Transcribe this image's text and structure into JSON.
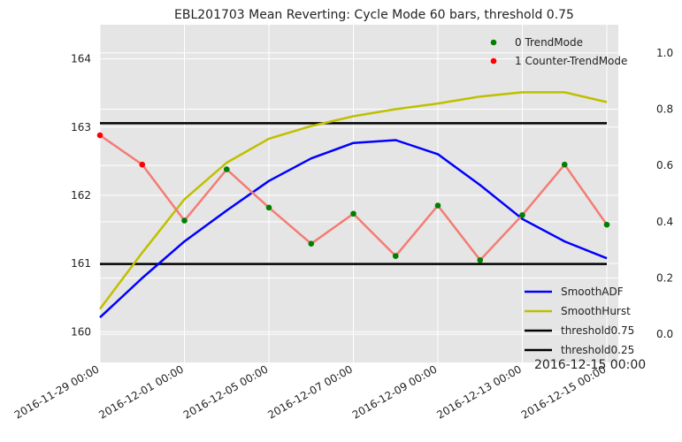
{
  "chart_data": {
    "type": "line",
    "title": "EBL201703 Mean Reverting: Cycle Mode 60 bars, threshold 0.75",
    "annotation": "2016-12-15 00:00",
    "x_tick_labels": [
      "2016-11-29 00:00",
      "2016-12-01 00:00",
      "2016-12-05 00:00",
      "2016-12-07 00:00",
      "2016-12-09 00:00",
      "2016-12-13 00:00",
      "2016-12-15 00:00"
    ],
    "bar_count": 13,
    "y_left": {
      "ylim": [
        159.55,
        164.5
      ],
      "ticks": [
        160,
        161,
        162,
        163,
        164
      ],
      "tick_labels": [
        "160",
        "161",
        "162",
        "163",
        "164"
      ]
    },
    "y_right": {
      "ylim": [
        -0.1,
        1.1
      ],
      "ticks": [
        0.0,
        0.2,
        0.4,
        0.6,
        0.8,
        1.0
      ],
      "tick_labels": [
        "0.0",
        "0.2",
        "0.4",
        "0.6",
        "0.8",
        "1.0"
      ]
    },
    "grid": true,
    "price": {
      "color": "#f47c74",
      "values": [
        162.88,
        162.45,
        161.63,
        162.38,
        161.82,
        161.29,
        161.73,
        161.11,
        161.85,
        161.05,
        161.71,
        162.45,
        161.57
      ]
    },
    "modes": [
      1,
      1,
      0,
      0,
      0,
      0,
      0,
      0,
      0,
      0,
      0,
      0,
      0
    ],
    "series": [
      {
        "name": "SmoothADF",
        "color": "#0000ff",
        "axis": "right",
        "values": [
          0.06,
          0.2,
          0.33,
          0.44,
          0.545,
          0.625,
          0.68,
          0.69,
          0.64,
          0.53,
          0.41,
          0.33,
          0.27
        ]
      },
      {
        "name": "SmoothHurst",
        "color": "#bfbf00",
        "axis": "right",
        "values": [
          0.09,
          0.29,
          0.48,
          0.61,
          0.695,
          0.74,
          0.775,
          0.8,
          0.82,
          0.845,
          0.86,
          0.86,
          0.825
        ]
      },
      {
        "name": "threshold0.75",
        "color": "#000000",
        "axis": "right",
        "values": [
          0.75,
          0.75,
          0.75,
          0.75,
          0.75,
          0.75,
          0.75,
          0.75,
          0.75,
          0.75,
          0.75,
          0.75,
          0.75
        ]
      },
      {
        "name": "threshold0.25",
        "color": "#000000",
        "axis": "right",
        "values": [
          0.25,
          0.25,
          0.25,
          0.25,
          0.25,
          0.25,
          0.25,
          0.25,
          0.25,
          0.25,
          0.25,
          0.25,
          0.25
        ]
      }
    ],
    "scatter_legend": [
      {
        "label": "0 TrendMode",
        "color": "#008000"
      },
      {
        "label": "1 Counter-TrendMode",
        "color": "#ff0000"
      }
    ],
    "line_legend_position": "lower-right",
    "scatter_legend_position": "upper-right",
    "colors": {
      "plot_background": "#e5e5e5",
      "grid": "#ffffff"
    }
  }
}
